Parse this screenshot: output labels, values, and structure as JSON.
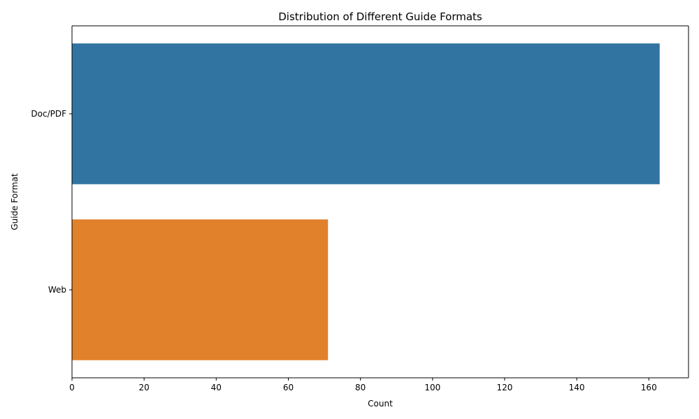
{
  "chart_data": {
    "type": "bar",
    "orientation": "horizontal",
    "title": "Distribution of Different Guide Formats",
    "xlabel": "Count",
    "ylabel": "Guide Format",
    "categories": [
      "Doc/PDF",
      "Web"
    ],
    "values": [
      163,
      71
    ],
    "xlim": [
      0,
      171
    ],
    "xticks": [
      0,
      20,
      40,
      60,
      80,
      100,
      120,
      140,
      160
    ],
    "grid": false,
    "legend": "none",
    "colors": [
      "#3274a1",
      "#e1812c"
    ]
  }
}
